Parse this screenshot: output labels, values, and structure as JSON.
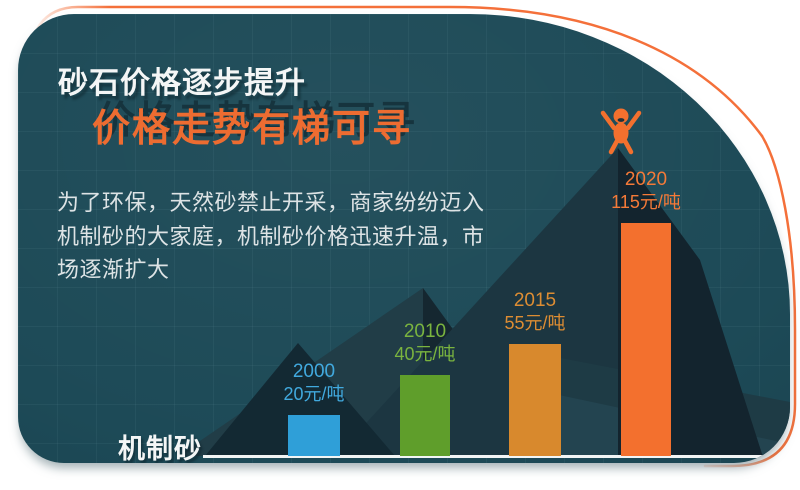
{
  "card": {
    "title": "砂石价格逐步提升",
    "subtitle": "价格走势有梯可寻",
    "body_lines": [
      "为了环保，天然砂禁止开采，商家纷纷迈入",
      "机制砂的大家庭，机制砂价格迅速升温，市",
      "场逐渐扩大"
    ]
  },
  "chart_data": {
    "type": "bar",
    "categories": [
      "2000",
      "2010",
      "2015",
      "2020"
    ],
    "values": [
      20,
      40,
      55,
      115
    ],
    "value_labels": [
      "20元/吨",
      "40元/吨",
      "55元/吨",
      "115元/吨"
    ],
    "unit": "元/吨",
    "series_label": "机制砂",
    "bar_colors": [
      "#2f9fd8",
      "#5f9e2b",
      "#d8892d",
      "#f3702e"
    ],
    "label_colors": [
      "#41a9de",
      "#7ab43f",
      "#dd8d33",
      "#f57a38"
    ],
    "legend_position": "none",
    "grid": false,
    "annotations": [
      "celebrating-person-icon on highest peak"
    ]
  },
  "colors": {
    "card_background": "#1d4a57",
    "accent_outline": "#f4703a",
    "title_text": "#f4f6f6",
    "subtitle_text": "#ed6c31",
    "body_text": "#dde3e5",
    "baseline": "#f2f5f5",
    "mountain_shades": [
      "#213d47",
      "#152730",
      "#1c3641",
      "#1e3b45",
      "#234450",
      "#13242e",
      "#132933"
    ]
  }
}
